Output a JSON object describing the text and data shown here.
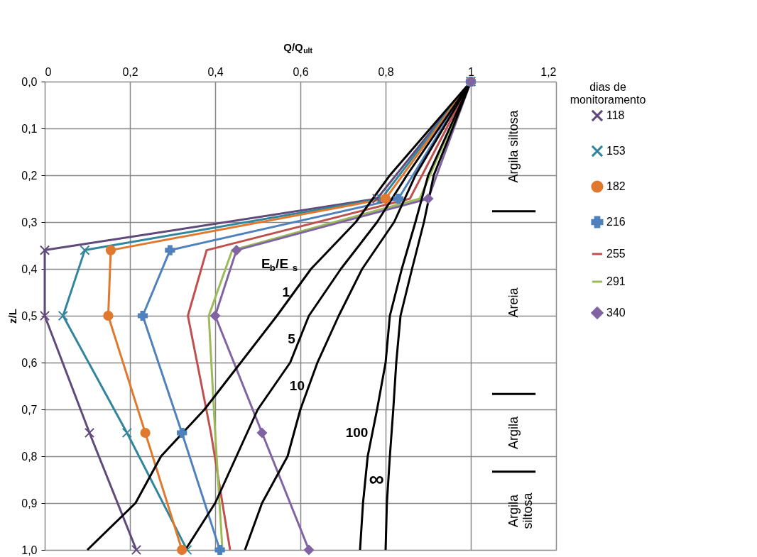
{
  "chart_data": {
    "type": "line",
    "xlabel": "Q/Q$_{ult}$",
    "ylabel": "z/L",
    "legend_title": "dias de\nmonitoramento",
    "xlim": [
      0,
      1.2
    ],
    "xticks": [
      0,
      {
        "value": 0.2,
        "label": "0,2"
      },
      {
        "value": 0.4,
        "label": "0,4"
      },
      {
        "value": 0.6,
        "label": "0,6"
      },
      {
        "value": 0.8,
        "label": "0,8"
      },
      1,
      {
        "value": 1.2,
        "label": "1,2"
      }
    ],
    "ylim": [
      1.0,
      0.0
    ],
    "yticks": [
      {
        "value": 0,
        "label": "0,0"
      },
      {
        "value": 0.1,
        "label": "0,1"
      },
      {
        "value": 0.2,
        "label": "0,2"
      },
      {
        "value": 0.3,
        "label": "0,3"
      },
      {
        "value": 0.4,
        "label": "0,4"
      },
      {
        "value": 0.5,
        "label": "0,5"
      },
      {
        "value": 0.6,
        "label": "0,6"
      },
      {
        "value": 0.7,
        "label": "0,7"
      },
      {
        "value": 0.8,
        "label": "0,8"
      },
      {
        "value": 0.9,
        "label": "0,9"
      },
      {
        "value": 1.0,
        "label": "1,0"
      }
    ],
    "grid": true,
    "legend": "right",
    "line_style": "solid",
    "series": [
      {
        "name": "118",
        "color": "#604a7b",
        "marker": "cross",
        "x": [
          1,
          0.78,
          0,
          0,
          0.105,
          0.215
        ],
        "values": [
          0,
          0.25,
          0.36,
          0.5,
          0.75,
          1.0
        ]
      },
      {
        "name": "153",
        "color": "#31859c",
        "marker": "cross",
        "x": [
          1,
          0.79,
          0.094,
          0.043,
          0.193,
          0.334
        ],
        "values": [
          0,
          0.25,
          0.36,
          0.5,
          0.75,
          1.0
        ]
      },
      {
        "name": "182",
        "color": "#e0782e",
        "marker": "circle",
        "x": [
          1,
          0.8,
          0.155,
          0.149,
          0.236,
          0.322
        ],
        "values": [
          0,
          0.25,
          0.36,
          0.5,
          0.75,
          1.0
        ]
      },
      {
        "name": "216",
        "color": "#4f81bd",
        "marker": "plus",
        "x": [
          1,
          0.83,
          0.294,
          0.23,
          0.322,
          0.411
        ],
        "values": [
          0,
          0.25,
          0.36,
          0.5,
          0.75,
          1.0
        ]
      },
      {
        "name": "255",
        "color": "#c0504d",
        "marker": "none",
        "x": [
          1,
          0.857,
          0.38,
          0.336,
          0.39,
          0.435
        ],
        "values": [
          0,
          0.25,
          0.36,
          0.5,
          0.75,
          1.0
        ]
      },
      {
        "name": "291",
        "color": "#9bbb59",
        "marker": "none",
        "x": [
          1,
          0.88,
          0.44,
          0.385,
          0.4,
          0.417
        ],
        "values": [
          0,
          0.25,
          0.36,
          0.5,
          0.75,
          1.0
        ]
      },
      {
        "name": "340",
        "color": "#8064a2",
        "marker": "diamond",
        "x": [
          1,
          0.9,
          0.45,
          0.4,
          0.51,
          0.62
        ],
        "values": [
          0,
          0.25,
          0.36,
          0.5,
          0.75,
          1.0
        ]
      },
      {
        "name": "1",
        "color": "#000000",
        "marker": "none",
        "x": [
          1,
          0.905,
          0.81,
          0.73,
          0.625,
          0.545,
          0.46,
          0.375,
          0.273,
          0.213,
          0.1
        ],
        "values": [
          0,
          0.1,
          0.2,
          0.3,
          0.4,
          0.5,
          0.6,
          0.7,
          0.8,
          0.9,
          1.0
        ]
      },
      {
        "name": "5",
        "color": "#000000",
        "marker": "none",
        "x": [
          1,
          0.925,
          0.85,
          0.78,
          0.695,
          0.62,
          0.576,
          0.5,
          0.45,
          0.4,
          0.33
        ],
        "values": [
          0,
          0.1,
          0.2,
          0.3,
          0.4,
          0.5,
          0.6,
          0.7,
          0.8,
          0.9,
          1.0
        ]
      },
      {
        "name": "10",
        "color": "#000000",
        "marker": "none",
        "x": [
          1,
          0.935,
          0.87,
          0.82,
          0.745,
          0.69,
          0.64,
          0.6,
          0.57,
          0.51,
          0.47
        ],
        "values": [
          0,
          0.1,
          0.2,
          0.3,
          0.4,
          0.5,
          0.6,
          0.7,
          0.8,
          0.9,
          1.0
        ]
      },
      {
        "name": "100",
        "color": "#000000",
        "marker": "none",
        "x": [
          1,
          0.95,
          0.9,
          0.87,
          0.838,
          0.81,
          0.8,
          0.78,
          0.758,
          0.747,
          0.74
        ],
        "values": [
          0,
          0.1,
          0.2,
          0.3,
          0.4,
          0.5,
          0.6,
          0.7,
          0.8,
          0.9,
          1.0
        ]
      },
      {
        "name": "∞",
        "color": "#000000",
        "marker": "none",
        "x": [
          1,
          0.957,
          0.913,
          0.89,
          0.862,
          0.835,
          0.825,
          0.818,
          0.81,
          0.803,
          0.8
        ],
        "values": [
          0,
          0.1,
          0.2,
          0.3,
          0.4,
          0.5,
          0.6,
          0.7,
          0.8,
          0.9,
          1.0
        ]
      }
    ],
    "ref_lines": [
      {
        "axis": "y",
        "value": 0.277,
        "color": "#000000"
      },
      {
        "axis": "y",
        "value": 0.667,
        "color": "#000000"
      },
      {
        "axis": "y",
        "value": 0.833,
        "color": "#000000"
      }
    ],
    "annotations": [
      "E$_{b}$/E$_{s}$",
      "Argila siltosa",
      "Areia",
      "Argila",
      "Argila\nsiltosa"
    ]
  }
}
